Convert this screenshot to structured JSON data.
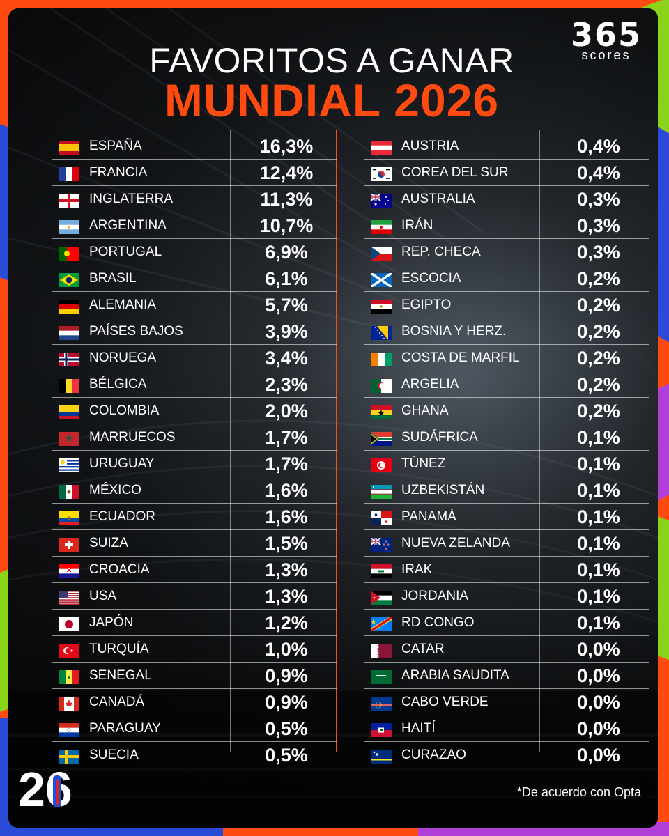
{
  "header": {
    "title_line1": "FAVORITOS A GANAR",
    "title_line2": "MUNDIAL 2026",
    "logo_number": "365",
    "logo_word": "scores"
  },
  "colors": {
    "accent": "#ff4a10",
    "background": "#0b0c0e",
    "text": "#ffffff"
  },
  "left_column": [
    {
      "country": "ESPAÑA",
      "pct": "16,3%",
      "flag": "spain-flag-icon"
    },
    {
      "country": "FRANCIA",
      "pct": "12,4%",
      "flag": "france-flag-icon"
    },
    {
      "country": "INGLATERRA",
      "pct": "11,3%",
      "flag": "england-flag-icon"
    },
    {
      "country": "ARGENTINA",
      "pct": "10,7%",
      "flag": "argentina-flag-icon"
    },
    {
      "country": "PORTUGAL",
      "pct": "6,9%",
      "flag": "portugal-flag-icon"
    },
    {
      "country": "BRASIL",
      "pct": "6,1%",
      "flag": "brazil-flag-icon"
    },
    {
      "country": "ALEMANIA",
      "pct": "5,7%",
      "flag": "germany-flag-icon"
    },
    {
      "country": "PAÍSES BAJOS",
      "pct": "3,9%",
      "flag": "netherlands-flag-icon"
    },
    {
      "country": "NORUEGA",
      "pct": "3,4%",
      "flag": "norway-flag-icon"
    },
    {
      "country": "BÉLGICA",
      "pct": "2,3%",
      "flag": "belgium-flag-icon"
    },
    {
      "country": "COLOMBIA",
      "pct": "2,0%",
      "flag": "colombia-flag-icon"
    },
    {
      "country": "MARRUECOS",
      "pct": "1,7%",
      "flag": "morocco-flag-icon"
    },
    {
      "country": "URUGUAY",
      "pct": "1,7%",
      "flag": "uruguay-flag-icon"
    },
    {
      "country": "MÉXICO",
      "pct": "1,6%",
      "flag": "mexico-flag-icon"
    },
    {
      "country": "ECUADOR",
      "pct": "1,6%",
      "flag": "ecuador-flag-icon"
    },
    {
      "country": "SUIZA",
      "pct": "1,5%",
      "flag": "switzerland-flag-icon"
    },
    {
      "country": "CROACIA",
      "pct": "1,3%",
      "flag": "croatia-flag-icon"
    },
    {
      "country": "USA",
      "pct": "1,3%",
      "flag": "usa-flag-icon"
    },
    {
      "country": "JAPÓN",
      "pct": "1,2%",
      "flag": "japan-flag-icon"
    },
    {
      "country": "TURQUÍA",
      "pct": "1,0%",
      "flag": "turkey-flag-icon"
    },
    {
      "country": "SENEGAL",
      "pct": "0,9%",
      "flag": "senegal-flag-icon"
    },
    {
      "country": "CANADÁ",
      "pct": "0,9%",
      "flag": "canada-flag-icon"
    },
    {
      "country": "PARAGUAY",
      "pct": "0,5%",
      "flag": "paraguay-flag-icon"
    },
    {
      "country": "SUECIA",
      "pct": "0,5%",
      "flag": "sweden-flag-icon"
    }
  ],
  "right_column": [
    {
      "country": "AUSTRIA",
      "pct": "0,4%",
      "flag": "austria-flag-icon"
    },
    {
      "country": "COREA DEL SUR",
      "pct": "0,4%",
      "flag": "south-korea-flag-icon"
    },
    {
      "country": "AUSTRALIA",
      "pct": "0,3%",
      "flag": "australia-flag-icon"
    },
    {
      "country": "IRÁN",
      "pct": "0,3%",
      "flag": "iran-flag-icon"
    },
    {
      "country": "REP. CHECA",
      "pct": "0,3%",
      "flag": "czech-flag-icon"
    },
    {
      "country": "ESCOCIA",
      "pct": "0,2%",
      "flag": "scotland-flag-icon"
    },
    {
      "country": "EGIPTO",
      "pct": "0,2%",
      "flag": "egypt-flag-icon"
    },
    {
      "country": "BOSNIA Y HERZ.",
      "pct": "0,2%",
      "flag": "bosnia-flag-icon"
    },
    {
      "country": "COSTA DE MARFIL",
      "pct": "0,2%",
      "flag": "ivory-coast-flag-icon"
    },
    {
      "country": "ARGELIA",
      "pct": "0,2%",
      "flag": "algeria-flag-icon"
    },
    {
      "country": "GHANA",
      "pct": "0,2%",
      "flag": "ghana-flag-icon"
    },
    {
      "country": "SUDÁFRICA",
      "pct": "0,1%",
      "flag": "south-africa-flag-icon"
    },
    {
      "country": "TÚNEZ",
      "pct": "0,1%",
      "flag": "tunisia-flag-icon"
    },
    {
      "country": "UZBEKISTÁN",
      "pct": "0,1%",
      "flag": "uzbekistan-flag-icon"
    },
    {
      "country": "PANAMÁ",
      "pct": "0,1%",
      "flag": "panama-flag-icon"
    },
    {
      "country": "NUEVA ZELANDA",
      "pct": "0,1%",
      "flag": "new-zealand-flag-icon"
    },
    {
      "country": "IRAK",
      "pct": "0,1%",
      "flag": "iraq-flag-icon"
    },
    {
      "country": "JORDANIA",
      "pct": "0,1%",
      "flag": "jordan-flag-icon"
    },
    {
      "country": "RD CONGO",
      "pct": "0,1%",
      "flag": "dr-congo-flag-icon"
    },
    {
      "country": "CATAR",
      "pct": "0,0%",
      "flag": "qatar-flag-icon"
    },
    {
      "country": "ARABIA SAUDITA",
      "pct": "0,0%",
      "flag": "saudi-arabia-flag-icon"
    },
    {
      "country": "CABO VERDE",
      "pct": "0,0%",
      "flag": "cape-verde-flag-icon"
    },
    {
      "country": "HAITÍ",
      "pct": "0,0%",
      "flag": "haiti-flag-icon"
    },
    {
      "country": "CURAZAO",
      "pct": "0,0%",
      "flag": "curacao-flag-icon"
    }
  ],
  "footer": {
    "note": "*De acuerdo con Opta",
    "wc_logo": "26"
  }
}
